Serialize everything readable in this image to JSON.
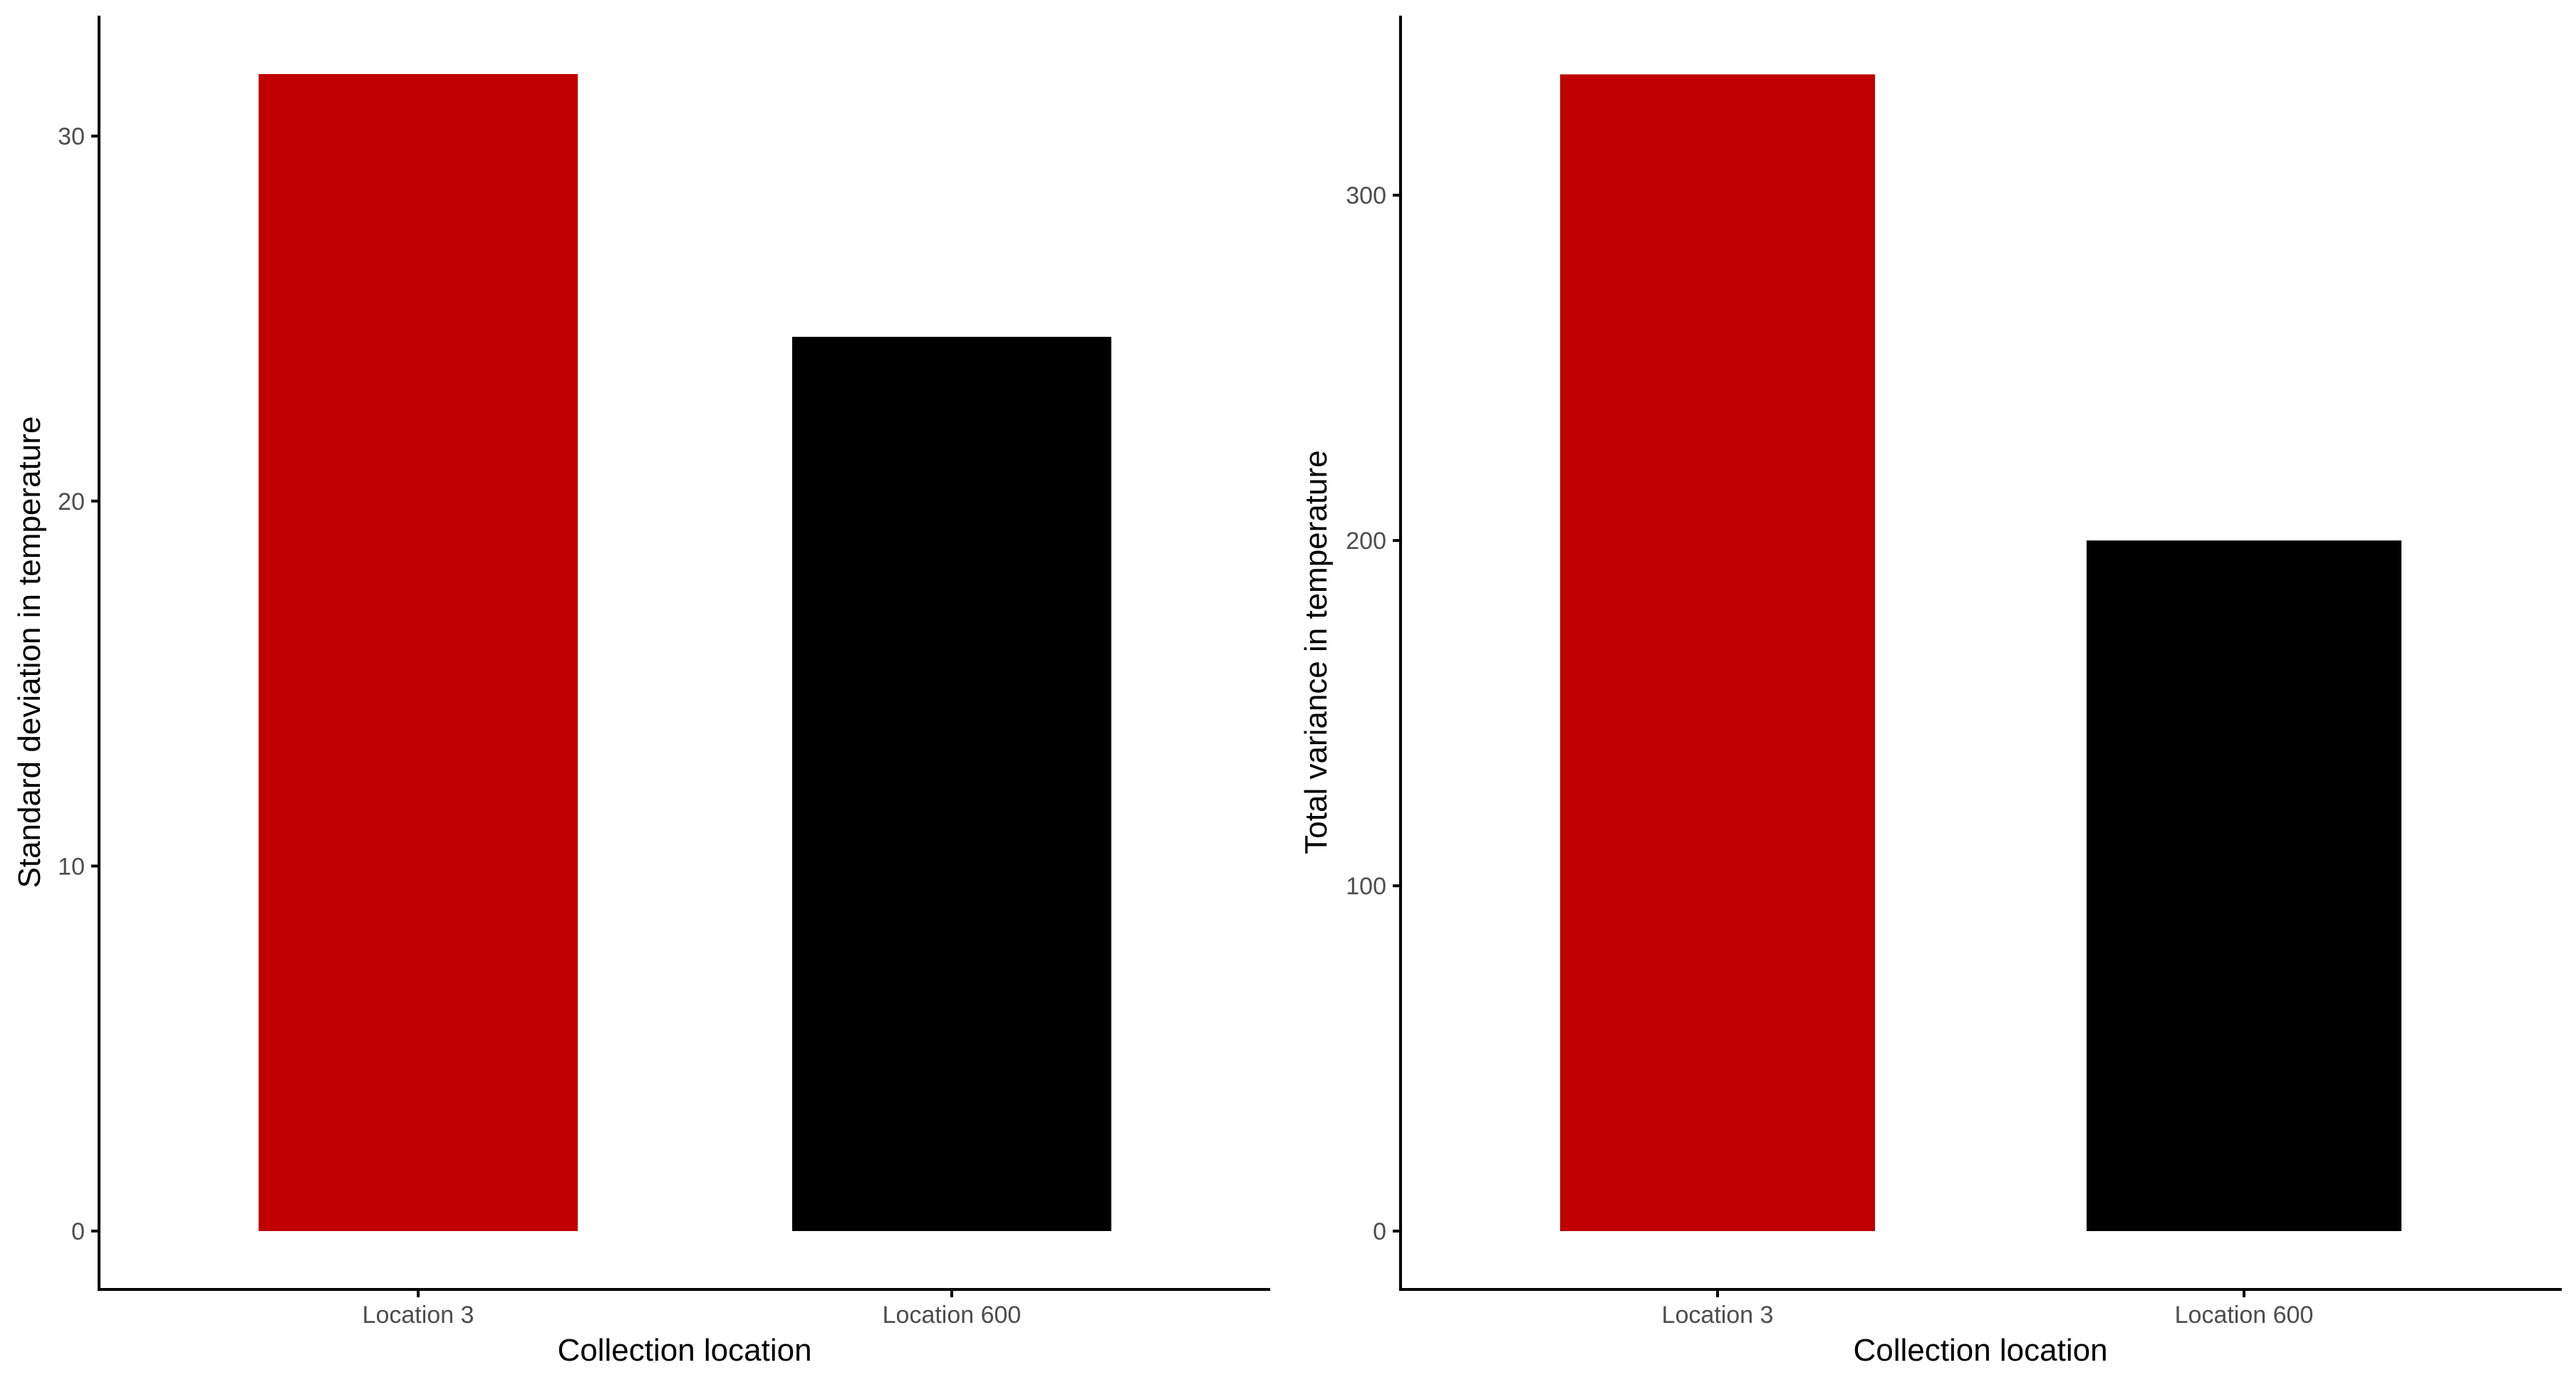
{
  "chart_data": [
    {
      "type": "bar",
      "categories": [
        "Location 3",
        "Location 600"
      ],
      "values": [
        31.7,
        24.5
      ],
      "colors": [
        "#c00000",
        "#000000"
      ],
      "xlabel": "Collection location",
      "ylabel": "Standard deviation in temperature",
      "ylim": [
        -1.6,
        33.3
      ],
      "yticks": [
        0,
        10,
        20,
        30
      ],
      "grid": false,
      "legend": "none"
    },
    {
      "type": "bar",
      "categories": [
        "Location 3",
        "Location 600"
      ],
      "values": [
        335,
        200
      ],
      "colors": [
        "#c00000",
        "#000000"
      ],
      "xlabel": "Collection location",
      "ylabel": "Total variance in temperature",
      "ylim": [
        -16.9,
        352
      ],
      "yticks": [
        0,
        100,
        200,
        300
      ],
      "grid": false,
      "legend": "none"
    }
  ]
}
